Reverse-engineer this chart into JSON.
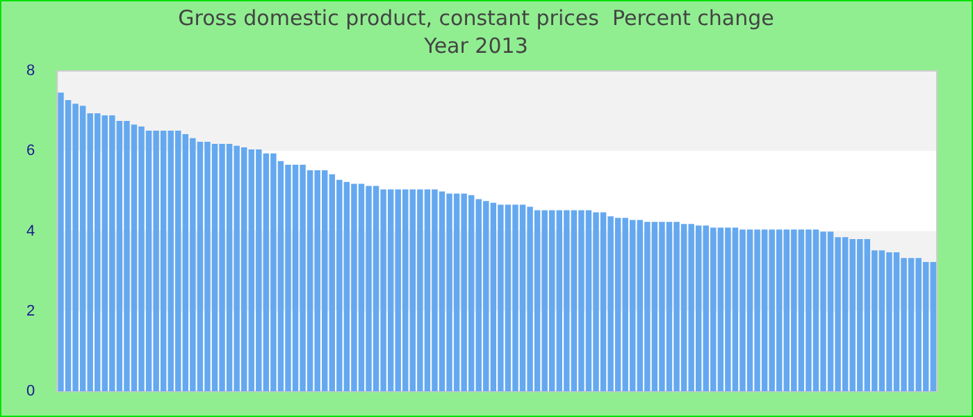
{
  "chart_data": {
    "type": "bar",
    "title": "Gross domestic product, constant prices  Percent change",
    "subtitle": "Year 2013",
    "categories": [
      null,
      null,
      null,
      null,
      null,
      null,
      null,
      null,
      null,
      null,
      null,
      null,
      null,
      null,
      null,
      null,
      null,
      null,
      null,
      null,
      null,
      null,
      null,
      null,
      null,
      null,
      null,
      null,
      null,
      null,
      null,
      null,
      null,
      null,
      null,
      null,
      null,
      null,
      null,
      null,
      null,
      null,
      null,
      null,
      null,
      null,
      null,
      null,
      null,
      null,
      null,
      null,
      null,
      null,
      null,
      null,
      null,
      null,
      null,
      null,
      null,
      null,
      null,
      null,
      null,
      null,
      null,
      null,
      null,
      null,
      null,
      null,
      null,
      null,
      null,
      null,
      null,
      null,
      null,
      null,
      null,
      null,
      null,
      null,
      null,
      null,
      null,
      null,
      null,
      null,
      null,
      null,
      null,
      null,
      null,
      null,
      null,
      null,
      null,
      null,
      null,
      null,
      null,
      null,
      null,
      null,
      null,
      null,
      null,
      null,
      null,
      null,
      null,
      null,
      null,
      null,
      null,
      null,
      null,
      null
    ],
    "values": [
      7.46,
      7.27,
      7.18,
      7.13,
      6.94,
      6.94,
      6.89,
      6.89,
      6.75,
      6.75,
      6.66,
      6.61,
      6.51,
      6.51,
      6.51,
      6.51,
      6.51,
      6.42,
      6.32,
      6.23,
      6.23,
      6.18,
      6.18,
      6.18,
      6.13,
      6.09,
      6.04,
      6.04,
      5.94,
      5.94,
      5.75,
      5.66,
      5.66,
      5.66,
      5.52,
      5.52,
      5.52,
      5.42,
      5.28,
      5.23,
      5.18,
      5.18,
      5.13,
      5.13,
      5.04,
      5.04,
      5.04,
      5.04,
      5.04,
      5.04,
      5.04,
      5.04,
      4.99,
      4.94,
      4.94,
      4.94,
      4.9,
      4.8,
      4.75,
      4.71,
      4.66,
      4.66,
      4.66,
      4.66,
      4.61,
      4.52,
      4.52,
      4.52,
      4.52,
      4.52,
      4.52,
      4.52,
      4.52,
      4.47,
      4.47,
      4.37,
      4.33,
      4.33,
      4.28,
      4.28,
      4.23,
      4.23,
      4.23,
      4.23,
      4.23,
      4.18,
      4.18,
      4.14,
      4.14,
      4.09,
      4.09,
      4.09,
      4.09,
      4.04,
      4.04,
      4.04,
      4.04,
      4.04,
      4.04,
      4.04,
      4.04,
      4.04,
      4.04,
      4.04,
      3.99,
      3.99,
      3.85,
      3.85,
      3.8,
      3.8,
      3.8,
      3.52,
      3.52,
      3.47,
      3.47,
      3.33,
      3.33,
      3.33,
      3.23,
      3.23
    ],
    "color": "#64a8f0",
    "ylim": [
      0,
      8
    ],
    "yticks": [
      0,
      2,
      4,
      6,
      8
    ],
    "grid": false,
    "legend": false
  }
}
